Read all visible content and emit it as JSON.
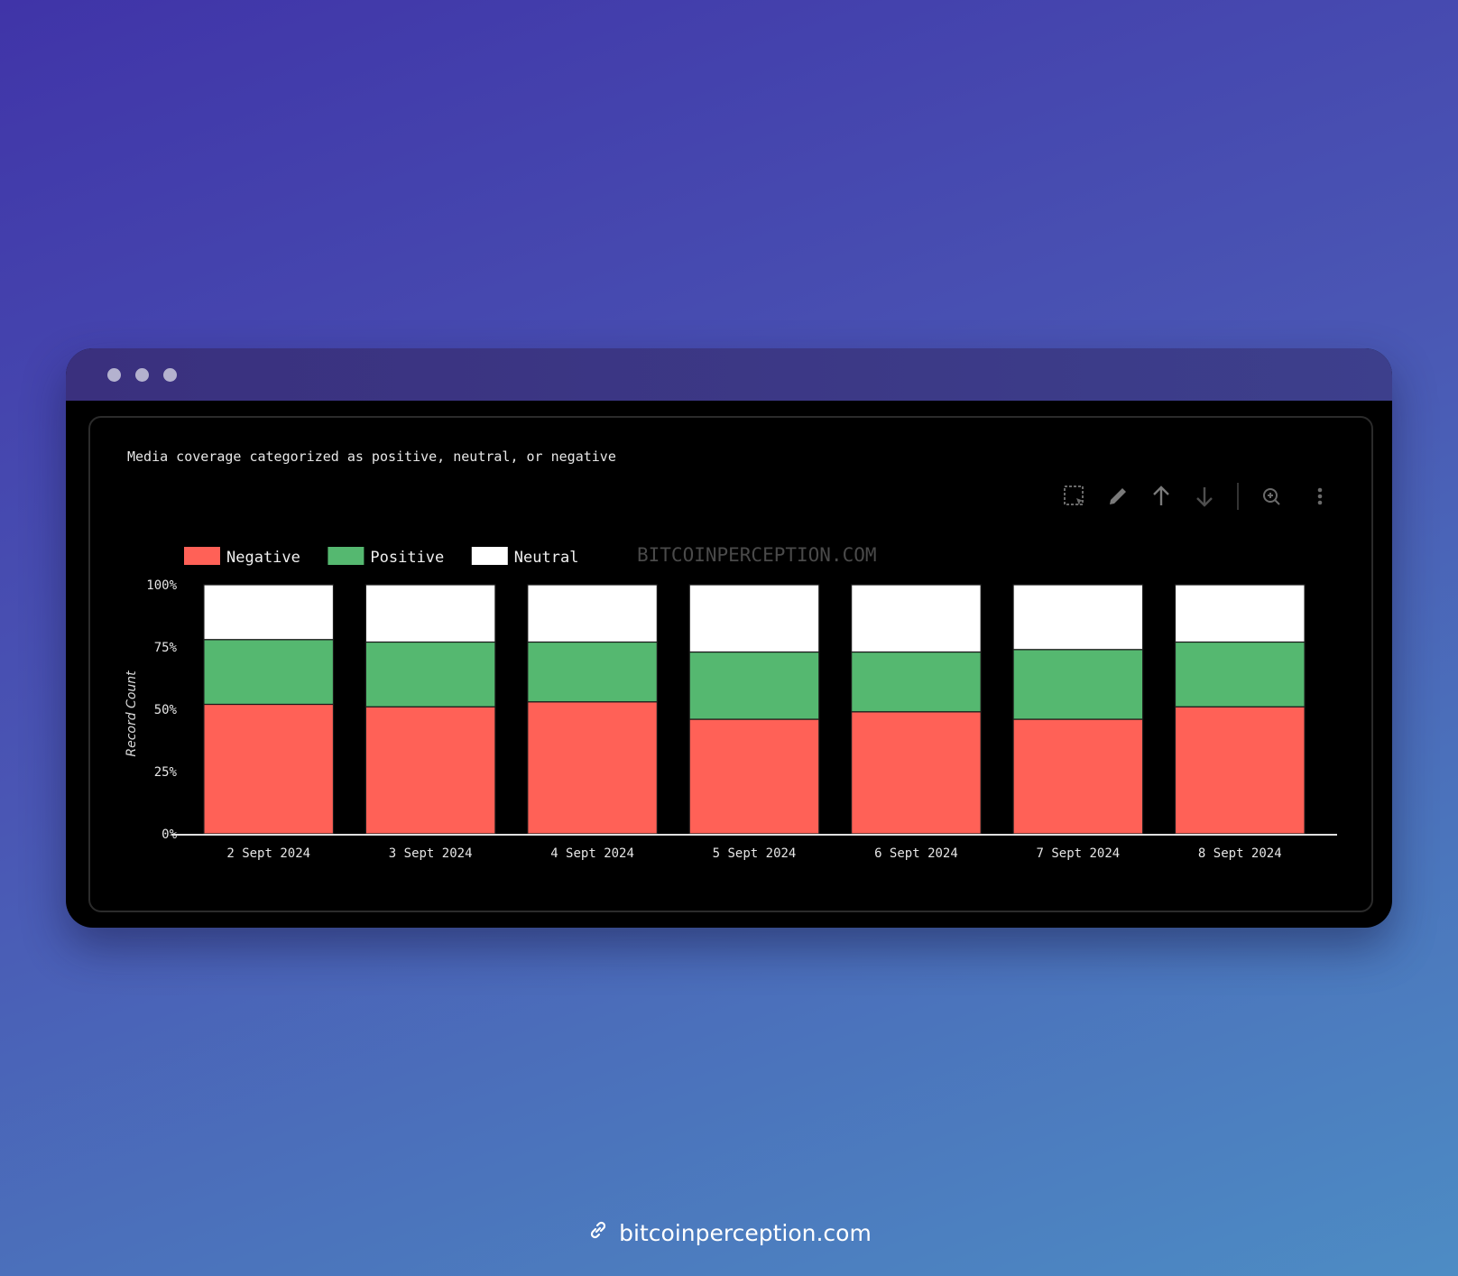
{
  "window": {
    "controls": [
      "close",
      "minimize",
      "maximize"
    ]
  },
  "toolbar": {
    "icons": [
      "select-region-icon",
      "pencil-icon",
      "arrow-up-icon",
      "arrow-down-icon",
      "zoom-icon",
      "more-icon"
    ]
  },
  "watermark": "BITCOINPERCEPTION.COM",
  "footer": {
    "link_text": "bitcoinperception.com",
    "icon": "link-icon"
  },
  "colors": {
    "negative": "#ff6157",
    "positive": "#55b870",
    "neutral": "#ffffff",
    "background": "#000000"
  },
  "chart_data": {
    "type": "bar",
    "stacked": true,
    "title": "Media coverage categorized as positive, neutral, or negative",
    "xlabel": "",
    "ylabel": "Record Count",
    "ylim": [
      0,
      100
    ],
    "y_ticks": [
      "0%",
      "25%",
      "50%",
      "75%",
      "100%"
    ],
    "legend_position": "top-left",
    "grid": false,
    "categories": [
      "2 Sept 2024",
      "3 Sept 2024",
      "4 Sept 2024",
      "5 Sept 2024",
      "6 Sept 2024",
      "7 Sept 2024",
      "8 Sept 2024"
    ],
    "series": [
      {
        "name": "Negative",
        "color": "#ff6157",
        "values": [
          52,
          51,
          53,
          46,
          49,
          46,
          51
        ]
      },
      {
        "name": "Positive",
        "color": "#55b870",
        "values": [
          26,
          26,
          24,
          27,
          24,
          28,
          26
        ]
      },
      {
        "name": "Neutral",
        "color": "#ffffff",
        "values": [
          22,
          23,
          23,
          27,
          27,
          26,
          23
        ]
      }
    ]
  }
}
